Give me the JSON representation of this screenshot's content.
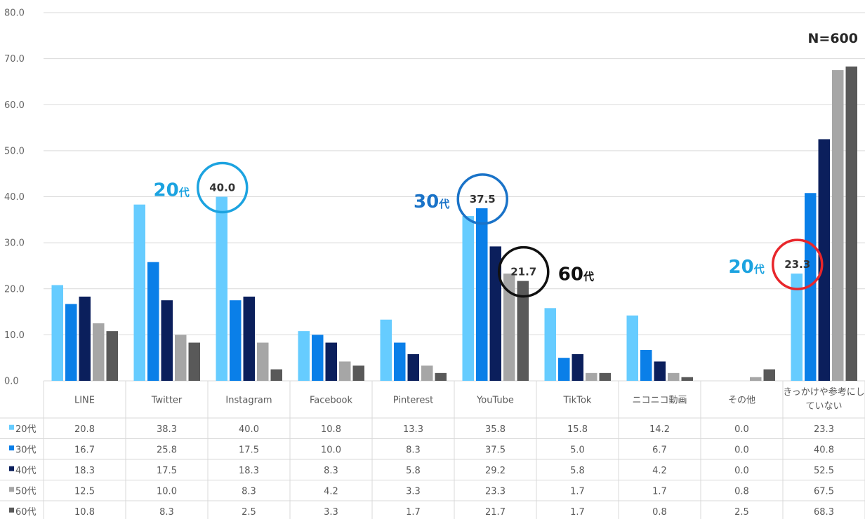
{
  "chart_data": {
    "type": "bar",
    "title": "",
    "xlabel": "",
    "ylabel": "",
    "ylim": [
      0,
      80
    ],
    "yticks": [
      "0.0",
      "10.0",
      "20.0",
      "30.0",
      "40.0",
      "50.0",
      "60.0",
      "70.0",
      "80.0"
    ],
    "grid": true,
    "sample_label": "N=600",
    "categories": [
      "LINE",
      "Twitter",
      "Instagram",
      "Facebook",
      "Pinterest",
      "YouTube",
      "TikTok",
      "ニコニコ動画",
      "その他",
      "きっかけや参考にしていない"
    ],
    "category_lines": [
      [
        "LINE"
      ],
      [
        "Twitter"
      ],
      [
        "Instagram"
      ],
      [
        "Facebook"
      ],
      [
        "Pinterest"
      ],
      [
        "YouTube"
      ],
      [
        "TikTok"
      ],
      [
        "ニコニコ動画"
      ],
      [
        "その他"
      ],
      [
        "きっかけや参考にし",
        "ていない"
      ]
    ],
    "series": [
      {
        "name": "20代",
        "color": "#66ccff",
        "values": [
          20.8,
          38.3,
          40.0,
          10.8,
          13.3,
          35.8,
          15.8,
          14.2,
          0.0,
          23.3
        ]
      },
      {
        "name": "30代",
        "color": "#0a7fe8",
        "values": [
          16.7,
          25.8,
          17.5,
          10.0,
          8.3,
          37.5,
          5.0,
          6.7,
          0.0,
          40.8
        ]
      },
      {
        "name": "40代",
        "color": "#0b1f5c",
        "values": [
          18.3,
          17.5,
          18.3,
          8.3,
          5.8,
          29.2,
          5.8,
          4.2,
          0.0,
          52.5
        ]
      },
      {
        "name": "50代",
        "color": "#a6a6a6",
        "values": [
          12.5,
          10.0,
          8.3,
          4.2,
          3.3,
          23.3,
          1.7,
          1.7,
          0.8,
          67.5
        ]
      },
      {
        "name": "60代",
        "color": "#595959",
        "values": [
          10.8,
          8.3,
          2.5,
          3.3,
          1.7,
          21.7,
          1.7,
          0.8,
          2.5,
          68.3
        ]
      }
    ],
    "table": {
      "rows": [
        [
          "20.8",
          "38.3",
          "40.0",
          "10.8",
          "13.3",
          "35.8",
          "15.8",
          "14.2",
          "0.0",
          "23.3"
        ],
        [
          "16.7",
          "25.8",
          "17.5",
          "10.0",
          "8.3",
          "37.5",
          "5.0",
          "6.7",
          "0.0",
          "40.8"
        ],
        [
          "18.3",
          "17.5",
          "18.3",
          "8.3",
          "5.8",
          "29.2",
          "5.8",
          "4.2",
          "0.0",
          "52.5"
        ],
        [
          "12.5",
          "10.0",
          "8.3",
          "4.2",
          "3.3",
          "23.3",
          "1.7",
          "1.7",
          "0.8",
          "67.5"
        ],
        [
          "10.8",
          "8.3",
          "2.5",
          "3.3",
          "1.7",
          "21.7",
          "1.7",
          "0.8",
          "2.5",
          "68.3"
        ]
      ]
    },
    "annotations": [
      {
        "category": "Instagram",
        "series": "20代",
        "value_label": "40.0",
        "group_label": "20",
        "group_suffix": "代",
        "color": "#1ca3e0",
        "side": "left"
      },
      {
        "category": "YouTube",
        "series": "30代",
        "value_label": "37.5",
        "group_label": "30",
        "group_suffix": "代",
        "color": "#1a73c8",
        "side": "left"
      },
      {
        "category": "YouTube",
        "series": "60代",
        "value_label": "21.7",
        "group_label": "60",
        "group_suffix": "代",
        "color": "#111111",
        "side": "right"
      },
      {
        "category": "きっかけや参考にしていない",
        "series": "20代",
        "value_label": "23.3",
        "group_label": "20",
        "group_suffix": "代",
        "color": "#e8262b",
        "side": "left",
        "group_color": "#1ca3e0"
      }
    ]
  }
}
